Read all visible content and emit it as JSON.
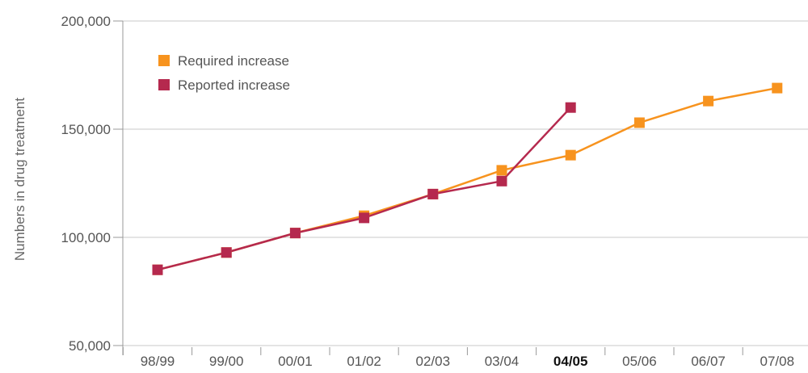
{
  "chart_data": {
    "type": "line",
    "title": "",
    "xlabel": "",
    "ylabel": "Numbers in drug treatment",
    "categories": [
      "98/99",
      "99/00",
      "00/01",
      "01/02",
      "02/03",
      "03/04",
      "04/05",
      "05/06",
      "06/07",
      "07/08"
    ],
    "highlighted_category": "04/05",
    "ylim": [
      50000,
      200000
    ],
    "yticks": [
      50000,
      100000,
      150000,
      200000
    ],
    "ytick_labels": [
      "50,000",
      "100,000",
      "150,000",
      "200,000"
    ],
    "grid": "horizontal",
    "legend_position": "top-left",
    "series": [
      {
        "name": "Required increase",
        "color": "#f7931e",
        "values": [
          85000,
          93000,
          102000,
          110000,
          120000,
          131000,
          138000,
          153000,
          163000,
          169000
        ]
      },
      {
        "name": "Reported increase",
        "color": "#b5294e",
        "values": [
          85000,
          93000,
          102000,
          109000,
          120000,
          126000,
          160000,
          null,
          null,
          null
        ]
      }
    ]
  }
}
